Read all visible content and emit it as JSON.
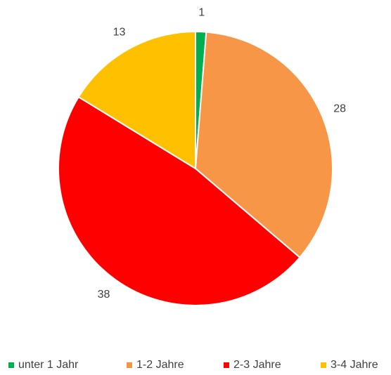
{
  "chart_data": {
    "type": "pie",
    "categories": [
      "unter 1 Jahr",
      "1-2 Jahre",
      "2-3 Jahre",
      "3-4 Jahre"
    ],
    "values": [
      1,
      28,
      38,
      13
    ],
    "colors": [
      "#00b050",
      "#f79646",
      "#ff0000",
      "#ffc000"
    ],
    "legend": "bottom"
  }
}
